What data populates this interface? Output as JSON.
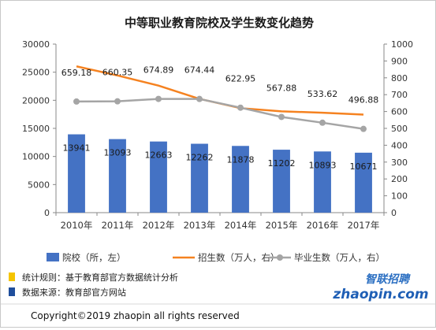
{
  "title": "中等职业教育院校及学生数变化趋势",
  "chart_data": {
    "type": "bar",
    "categories": [
      "2010年",
      "2011年",
      "2012年",
      "2013年",
      "2014年",
      "2015年",
      "2016年",
      "2017年"
    ],
    "left_axis": {
      "min": 0,
      "max": 30000,
      "ticks": [
        0,
        5000,
        10000,
        15000,
        20000,
        25000,
        30000
      ]
    },
    "right_axis": {
      "min": 0,
      "max": 1000,
      "ticks": [
        0,
        100,
        200,
        300,
        400,
        500,
        600,
        700,
        800,
        900,
        1000
      ]
    },
    "series": [
      {
        "name": "院校（所，左）",
        "kind": "bar",
        "axis": "left",
        "color": "#4472c4",
        "values": [
          13941,
          13093,
          12663,
          12262,
          11878,
          11202,
          10893,
          10671
        ],
        "labels": [
          "13941",
          "13093",
          "12663",
          "12262",
          "11878",
          "11202",
          "10893",
          "10671"
        ]
      },
      {
        "name": "招生数（万人，右）",
        "kind": "line",
        "axis": "right",
        "color": "#f58220",
        "values": [
          868,
          814,
          754,
          675,
          620,
          601,
          593,
          582
        ]
      },
      {
        "name": "毕业生数（万人，右）",
        "kind": "line-marker",
        "axis": "right",
        "color": "#a5a5a5",
        "values": [
          659.18,
          660.35,
          674.89,
          674.44,
          622.95,
          567.88,
          533.62,
          496.88
        ],
        "labels": [
          "659.18",
          "660.35",
          "674.89",
          "674.44",
          "622.95",
          "567.88",
          "533.62",
          "496.88"
        ]
      }
    ],
    "legend_position": "bottom",
    "grid": false
  },
  "notes": {
    "rule": "统计规则：基于教育部官方数据统计分析",
    "source": "数据来源：教育部官方网站",
    "rule_color": "#f5c400",
    "source_color": "#1f4e9c"
  },
  "logo": {
    "cn": "智联招聘",
    "en": "zhaopin.com"
  },
  "footer": "Copyright©2019 zhaopin all rights reserved"
}
